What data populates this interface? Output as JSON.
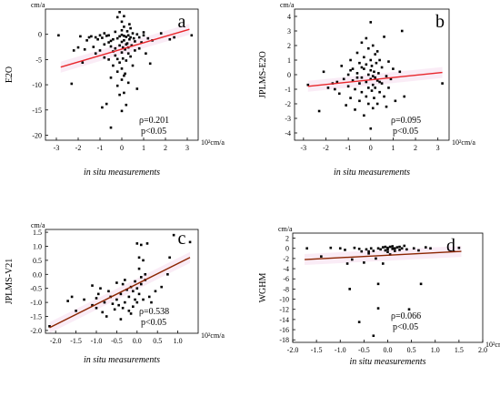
{
  "chart_data": [
    {
      "panel_label": "a",
      "type": "scatter",
      "ylabel": "E2O",
      "unit_y": "cm/a",
      "xlabel": "in situ measurements",
      "unit_x": "10²cm/a",
      "xlim": [
        -3.5,
        3.5
      ],
      "ylim": [
        -21,
        5
      ],
      "xticks": [
        -3,
        -2,
        -1,
        0,
        1,
        2,
        3
      ],
      "yticks": [
        -20,
        -15,
        -10,
        -5,
        0
      ],
      "rho_text": "ρ=0.201",
      "p_text": "p<0.05",
      "fit_line": {
        "x": [
          -2.8,
          3.1
        ],
        "y": [
          -6.5,
          1.0
        ],
        "color": "#e8262b"
      },
      "points": [
        [
          -2.9,
          -0.2
        ],
        [
          -2.3,
          -9.8
        ],
        [
          -2.2,
          -3.2
        ],
        [
          -2.0,
          -2.6
        ],
        [
          -1.8,
          -5.6
        ],
        [
          -1.7,
          -3.0
        ],
        [
          -1.6,
          -1.2
        ],
        [
          -1.5,
          -0.6
        ],
        [
          -1.4,
          -0.4
        ],
        [
          -1.3,
          -2.5
        ],
        [
          -1.2,
          -0.6
        ],
        [
          -1.2,
          -3.8
        ],
        [
          -1.1,
          -1.0
        ],
        [
          -1.0,
          -3.2
        ],
        [
          -1.0,
          -0.2
        ],
        [
          -0.9,
          -14.5
        ],
        [
          -0.9,
          -0.7
        ],
        [
          -0.8,
          -2.0
        ],
        [
          -0.8,
          -4.6
        ],
        [
          -0.7,
          -0.3
        ],
        [
          -0.7,
          -13.8
        ],
        [
          -0.6,
          -1.6
        ],
        [
          -0.6,
          -5.0
        ],
        [
          -0.6,
          -0.2
        ],
        [
          -0.5,
          -2.4
        ],
        [
          -0.5,
          -8.6
        ],
        [
          -0.5,
          -18.5
        ],
        [
          -0.4,
          -1.0
        ],
        [
          -0.4,
          -3.4
        ],
        [
          -0.4,
          -6.2
        ],
        [
          -0.3,
          0.5
        ],
        [
          -0.3,
          -2.8
        ],
        [
          -0.3,
          -4.2
        ],
        [
          -0.2,
          -0.8
        ],
        [
          -0.2,
          -7.4
        ],
        [
          -0.2,
          -10.2
        ],
        [
          -0.2,
          3.4
        ],
        [
          -0.1,
          -0.4
        ],
        [
          -0.1,
          -2.2
        ],
        [
          -0.1,
          -5.6
        ],
        [
          -0.1,
          -12.0
        ],
        [
          -0.1,
          4.4
        ],
        [
          0.0,
          -0.1
        ],
        [
          0.0,
          -1.5
        ],
        [
          0.0,
          -3.6
        ],
        [
          0.0,
          -6.8
        ],
        [
          0.0,
          -9.0
        ],
        [
          0.0,
          -15.2
        ],
        [
          0.0,
          2.5
        ],
        [
          0.0,
          0.8
        ],
        [
          0.05,
          -2.6
        ],
        [
          0.05,
          -4.8
        ],
        [
          0.1,
          -0.3
        ],
        [
          0.1,
          -1.2
        ],
        [
          0.1,
          -11.6
        ],
        [
          0.1,
          3.6
        ],
        [
          0.1,
          1.5
        ],
        [
          0.15,
          -3.0
        ],
        [
          0.15,
          -7.8
        ],
        [
          0.2,
          -0.5
        ],
        [
          0.2,
          -2.0
        ],
        [
          0.2,
          -5.2
        ],
        [
          0.2,
          -14.0
        ],
        [
          0.25,
          -1.8
        ],
        [
          0.25,
          0.6
        ],
        [
          0.3,
          -0.2
        ],
        [
          0.3,
          -3.8
        ],
        [
          0.3,
          -9.6
        ],
        [
          0.35,
          -1.0
        ],
        [
          0.35,
          2.0
        ],
        [
          0.4,
          -0.6
        ],
        [
          0.4,
          -4.4
        ],
        [
          0.45,
          -2.2
        ],
        [
          0.5,
          0.2
        ],
        [
          0.5,
          -6.2
        ],
        [
          0.55,
          -0.8
        ],
        [
          0.6,
          -1.4
        ],
        [
          0.6,
          -3.2
        ],
        [
          0.7,
          0.0
        ],
        [
          0.7,
          -10.8
        ],
        [
          0.8,
          -0.6
        ],
        [
          0.8,
          -2.8
        ],
        [
          0.9,
          -1.6
        ],
        [
          1.0,
          0.4
        ],
        [
          1.0,
          -0.2
        ],
        [
          1.1,
          -3.8
        ],
        [
          1.2,
          -0.8
        ],
        [
          1.3,
          -5.8
        ],
        [
          1.4,
          -1.2
        ],
        [
          1.8,
          0.2
        ],
        [
          2.2,
          -1.0
        ],
        [
          2.4,
          -0.6
        ],
        [
          3.2,
          -0.2
        ],
        [
          -1.9,
          -0.4
        ],
        [
          -0.8,
          0.2
        ],
        [
          0.4,
          1.2
        ],
        [
          -0.5,
          -1.3
        ],
        [
          0.3,
          -2.6
        ],
        [
          -0.2,
          -4.9
        ],
        [
          0.1,
          -8.2
        ]
      ]
    },
    {
      "panel_label": "b",
      "type": "scatter",
      "ylabel": "JPLMS-E2O",
      "unit_y": "cm/a",
      "xlabel": "in situ measurements",
      "unit_x": "10²cm/a",
      "xlim": [
        -3.4,
        3.5
      ],
      "ylim": [
        -4.5,
        4.5
      ],
      "xticks": [
        -3,
        -2,
        -1,
        0,
        1,
        2,
        3
      ],
      "yticks": [
        -4,
        -3,
        -2,
        -1,
        0,
        1,
        2,
        3,
        4
      ],
      "rho_text": "ρ=0.095",
      "p_text": "p<0.05",
      "fit_line": {
        "x": [
          -2.8,
          3.2
        ],
        "y": [
          -0.8,
          0.15
        ],
        "color": "#e8262b"
      },
      "points": [
        [
          -2.8,
          -0.7
        ],
        [
          -2.3,
          -2.5
        ],
        [
          -2.1,
          0.2
        ],
        [
          -1.9,
          -0.9
        ],
        [
          -1.7,
          -0.6
        ],
        [
          -1.5,
          -0.5
        ],
        [
          -1.4,
          -1.3
        ],
        [
          -1.3,
          0.6
        ],
        [
          -1.2,
          -0.3
        ],
        [
          -1.1,
          -2.1
        ],
        [
          -1.0,
          0.0
        ],
        [
          -1.0,
          -0.8
        ],
        [
          -0.9,
          1.0
        ],
        [
          -0.9,
          -1.6
        ],
        [
          -0.8,
          -0.4
        ],
        [
          -0.8,
          0.4
        ],
        [
          -0.7,
          -2.4
        ],
        [
          -0.7,
          -1.0
        ],
        [
          -0.6,
          0.1
        ],
        [
          -0.6,
          1.5
        ],
        [
          -0.5,
          -0.6
        ],
        [
          -0.5,
          -1.8
        ],
        [
          -0.5,
          0.8
        ],
        [
          -0.4,
          -0.2
        ],
        [
          -0.4,
          2.2
        ],
        [
          -0.4,
          -1.2
        ],
        [
          -0.3,
          0.4
        ],
        [
          -0.3,
          -2.8
        ],
        [
          -0.3,
          1.2
        ],
        [
          -0.2,
          -0.5
        ],
        [
          -0.2,
          2.5
        ],
        [
          -0.2,
          -1.5
        ],
        [
          -0.1,
          0.0
        ],
        [
          -0.1,
          -0.9
        ],
        [
          -0.1,
          1.8
        ],
        [
          -0.1,
          -2.0
        ],
        [
          0.0,
          0.3
        ],
        [
          0.0,
          -0.3
        ],
        [
          0.0,
          -3.7
        ],
        [
          0.0,
          1.0
        ],
        [
          0.0,
          3.6
        ],
        [
          0.05,
          -1.1
        ],
        [
          0.05,
          0.6
        ],
        [
          0.1,
          -0.7
        ],
        [
          0.1,
          2.0
        ],
        [
          0.1,
          -2.3
        ],
        [
          0.15,
          0.2
        ],
        [
          0.15,
          -1.6
        ],
        [
          0.2,
          -0.2
        ],
        [
          0.2,
          1.4
        ],
        [
          0.2,
          -0.9
        ],
        [
          0.25,
          0.8
        ],
        [
          0.3,
          -0.4
        ],
        [
          0.3,
          -2.0
        ],
        [
          0.35,
          0.1
        ],
        [
          0.4,
          -1.2
        ],
        [
          0.4,
          1.0
        ],
        [
          0.5,
          -0.6
        ],
        [
          0.5,
          0.5
        ],
        [
          0.6,
          -1.5
        ],
        [
          0.6,
          2.6
        ],
        [
          0.7,
          -0.1
        ],
        [
          0.8,
          0.9
        ],
        [
          0.8,
          -0.9
        ],
        [
          0.9,
          -0.3
        ],
        [
          1.0,
          0.4
        ],
        [
          1.1,
          -1.8
        ],
        [
          1.3,
          0.2
        ],
        [
          1.4,
          3.0
        ],
        [
          1.5,
          -1.5
        ],
        [
          3.2,
          -0.6
        ],
        [
          -1.6,
          -1.0
        ],
        [
          -0.6,
          -0.2
        ],
        [
          0.4,
          -0.5
        ],
        [
          -0.2,
          0.7
        ],
        [
          0.1,
          -0.1
        ],
        [
          0.3,
          1.6
        ],
        [
          -0.4,
          0.5
        ],
        [
          0.7,
          -2.2
        ],
        [
          -0.9,
          0.3
        ]
      ]
    },
    {
      "panel_label": "c",
      "type": "scatter",
      "ylabel": "JPLMS-V21",
      "unit_y": "cm/a",
      "xlabel": "in situ measurements",
      "unit_x": "10²cm/a",
      "xlim": [
        -2.25,
        1.5
      ],
      "ylim": [
        -2.1,
        1.6
      ],
      "xticks": [
        -2.0,
        -1.5,
        -1.0,
        -0.5,
        0.0,
        0.5,
        1.0
      ],
      "yticks": [
        -2.0,
        -1.5,
        -1.0,
        -0.5,
        0.0,
        0.5,
        1.0,
        1.5
      ],
      "rho_text": "ρ=0.538",
      "p_text": "p<0.05",
      "fit_line": {
        "x": [
          -2.15,
          1.3
        ],
        "y": [
          -1.9,
          0.6
        ],
        "color": "#8b2500"
      },
      "points": [
        [
          -2.15,
          -1.85
        ],
        [
          -1.7,
          -0.95
        ],
        [
          -1.6,
          -0.8
        ],
        [
          -1.3,
          -0.9
        ],
        [
          -1.1,
          -1.1
        ],
        [
          -1.1,
          -0.4
        ],
        [
          -1.0,
          -0.85
        ],
        [
          -1.0,
          -1.2
        ],
        [
          -0.95,
          -0.7
        ],
        [
          -0.9,
          -0.5
        ],
        [
          -0.8,
          -1.0
        ],
        [
          -0.75,
          -1.5
        ],
        [
          -0.7,
          -0.6
        ],
        [
          -0.6,
          -1.05
        ],
        [
          -0.55,
          -1.25
        ],
        [
          -0.5,
          -0.9
        ],
        [
          -0.5,
          -0.3
        ],
        [
          -0.45,
          -1.1
        ],
        [
          -0.4,
          -0.7
        ],
        [
          -0.4,
          -1.6
        ],
        [
          -0.35,
          -0.35
        ],
        [
          -0.3,
          -1.0
        ],
        [
          -0.3,
          -0.2
        ],
        [
          -0.25,
          -0.55
        ],
        [
          -0.2,
          -1.3
        ],
        [
          -0.2,
          -0.8
        ],
        [
          -0.15,
          -0.45
        ],
        [
          -0.1,
          -1.15
        ],
        [
          -0.1,
          -0.6
        ],
        [
          -0.05,
          -0.25
        ],
        [
          -0.05,
          -0.9
        ],
        [
          0.0,
          -0.5
        ],
        [
          0.0,
          -1.0
        ],
        [
          0.0,
          1.1
        ],
        [
          0.05,
          -0.7
        ],
        [
          0.05,
          0.2
        ],
        [
          0.1,
          -0.35
        ],
        [
          0.1,
          1.05
        ],
        [
          0.15,
          -0.9
        ],
        [
          0.15,
          0.5
        ],
        [
          0.2,
          -0.2
        ],
        [
          0.2,
          0.0
        ],
        [
          0.25,
          1.1
        ],
        [
          0.35,
          -1.0
        ],
        [
          0.45,
          -0.6
        ],
        [
          0.6,
          -0.45
        ],
        [
          0.75,
          0.0
        ],
        [
          0.8,
          0.6
        ],
        [
          0.9,
          1.4
        ],
        [
          1.3,
          1.15
        ],
        [
          -1.5,
          -1.3
        ],
        [
          -0.65,
          -0.8
        ],
        [
          -0.15,
          -1.4
        ],
        [
          0.05,
          0.6
        ],
        [
          -0.35,
          -1.2
        ],
        [
          0.1,
          -0.1
        ],
        [
          -0.85,
          -1.35
        ],
        [
          0.3,
          -0.8
        ]
      ]
    },
    {
      "panel_label": "d",
      "type": "scatter",
      "ylabel": "WGHM",
      "unit_y": "cm/a",
      "xlabel": "in situ measurements",
      "unit_x": "10²cm/a",
      "xlim": [
        -2.0,
        2.0
      ],
      "ylim": [
        -18.5,
        3
      ],
      "xticks": [
        -2.0,
        -1.5,
        -1.0,
        -0.5,
        0.0,
        0.5,
        1.0,
        1.5,
        2.0
      ],
      "yticks": [
        -18,
        -16,
        -14,
        -12,
        -10,
        -8,
        -6,
        -4,
        -2,
        0,
        2
      ],
      "rho_text": "ρ=0.066",
      "p_text": "p<0.05",
      "fit_line": {
        "x": [
          -1.75,
          1.55
        ],
        "y": [
          -2.2,
          -0.6
        ],
        "color": "#8b2500"
      },
      "points": [
        [
          -1.7,
          0.0
        ],
        [
          -1.4,
          -1.6
        ],
        [
          -1.2,
          0.1
        ],
        [
          -1.0,
          0.0
        ],
        [
          -0.9,
          -0.3
        ],
        [
          -0.85,
          -3.0
        ],
        [
          -0.8,
          -8.0
        ],
        [
          -0.75,
          -2.2
        ],
        [
          -0.7,
          0.1
        ],
        [
          -0.6,
          -14.5
        ],
        [
          -0.55,
          -0.6
        ],
        [
          -0.5,
          -2.8
        ],
        [
          -0.45,
          -0.2
        ],
        [
          -0.4,
          -1.0
        ],
        [
          -0.35,
          0.0
        ],
        [
          -0.3,
          -0.5
        ],
        [
          -0.3,
          -17.2
        ],
        [
          -0.25,
          -2.0
        ],
        [
          -0.2,
          -7.0
        ],
        [
          -0.2,
          -11.8
        ],
        [
          -0.15,
          -0.2
        ],
        [
          -0.1,
          0.2
        ],
        [
          -0.1,
          -3.0
        ],
        [
          -0.05,
          -0.4
        ],
        [
          0.0,
          0.1
        ],
        [
          0.0,
          -0.7
        ],
        [
          0.05,
          0.3
        ],
        [
          0.05,
          -1.2
        ],
        [
          0.1,
          -0.1
        ],
        [
          0.1,
          0.4
        ],
        [
          0.15,
          -0.5
        ],
        [
          0.2,
          0.2
        ],
        [
          0.25,
          -0.3
        ],
        [
          0.3,
          0.0
        ],
        [
          0.35,
          0.5
        ],
        [
          0.4,
          -0.2
        ],
        [
          0.45,
          -12.0
        ],
        [
          0.55,
          0.0
        ],
        [
          0.65,
          -0.4
        ],
        [
          0.7,
          -7.0
        ],
        [
          0.8,
          0.2
        ],
        [
          0.9,
          0.0
        ],
        [
          1.5,
          0.1
        ],
        [
          -0.6,
          -0.1
        ],
        [
          -0.4,
          -0.6
        ],
        [
          0.15,
          0.0
        ],
        [
          -0.05,
          0.3
        ],
        [
          0.25,
          0.3
        ],
        [
          -0.2,
          0.0
        ],
        [
          0.0,
          -0.2
        ]
      ]
    }
  ]
}
